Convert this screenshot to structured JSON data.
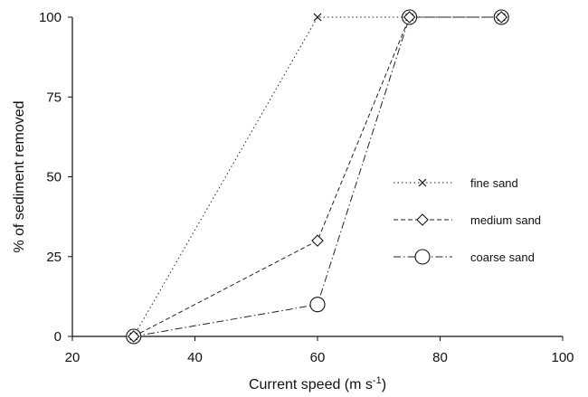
{
  "chart_data": {
    "type": "line",
    "title": "",
    "xlabel": "Current speed (m s",
    "xlabel_superscript": "-1",
    "xlabel_close": ")",
    "ylabel": "% of sediment removed",
    "xlim": [
      20,
      100
    ],
    "ylim": [
      0,
      100
    ],
    "xticks": [
      "20",
      "40",
      "60",
      "80",
      "100"
    ],
    "yticks": [
      "0",
      "25",
      "50",
      "75",
      "100"
    ],
    "grid": false,
    "legend_position": "right",
    "series": [
      {
        "name": "fine sand",
        "marker": "x",
        "dash": "dotted",
        "x": [
          30,
          60,
          75,
          90
        ],
        "y": [
          0,
          100,
          100,
          100
        ]
      },
      {
        "name": "medium sand",
        "marker": "diamond",
        "dash": "dashed",
        "x": [
          30,
          60,
          75,
          90
        ],
        "y": [
          0,
          30,
          100,
          100
        ]
      },
      {
        "name": "coarse sand",
        "marker": "circle",
        "dash": "dashdot",
        "x": [
          30,
          60,
          75,
          90
        ],
        "y": [
          0,
          10,
          100,
          100
        ]
      }
    ]
  }
}
